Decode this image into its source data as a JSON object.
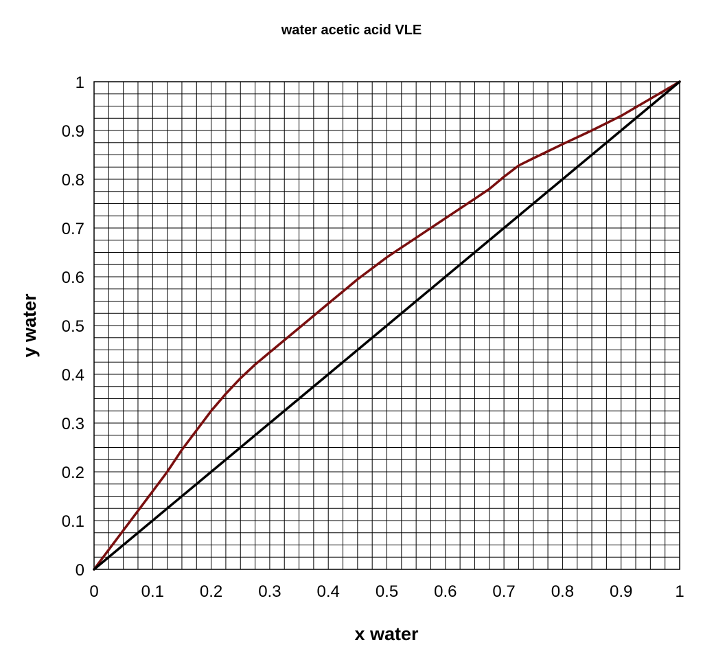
{
  "chart_data": {
    "type": "line",
    "title": "water acetic acid VLE",
    "xlabel": "x water",
    "ylabel": "y water",
    "xlim": [
      0,
      1
    ],
    "ylim": [
      0,
      1
    ],
    "x_ticks": [
      "0",
      "0.1",
      "0.2",
      "0.3",
      "0.4",
      "0.5",
      "0.6",
      "0.7",
      "0.8",
      "0.9",
      "1"
    ],
    "y_ticks": [
      "0",
      "0.1",
      "0.2",
      "0.3",
      "0.4",
      "0.5",
      "0.6",
      "0.7",
      "0.8",
      "0.9",
      "1"
    ],
    "grid": true,
    "grid_step": 0.025,
    "series": [
      {
        "color": "#7a0f0f",
        "x": [
          0,
          0.025,
          0.05,
          0.075,
          0.1,
          0.125,
          0.15,
          0.175,
          0.2,
          0.225,
          0.25,
          0.275,
          0.3,
          0.35,
          0.4,
          0.45,
          0.5,
          0.55,
          0.6,
          0.65,
          0.675,
          0.7,
          0.725,
          0.75,
          0.8,
          0.85,
          0.9,
          0.95,
          1
        ],
        "y": [
          0,
          0.04,
          0.08,
          0.12,
          0.16,
          0.2,
          0.245,
          0.285,
          0.325,
          0.36,
          0.392,
          0.42,
          0.445,
          0.495,
          0.545,
          0.595,
          0.64,
          0.68,
          0.72,
          0.76,
          0.78,
          0.805,
          0.828,
          0.843,
          0.872,
          0.9,
          0.93,
          0.965,
          1
        ]
      },
      {
        "color": "#000000",
        "x": [
          0,
          0.1,
          0.2,
          0.3,
          0.4,
          0.5,
          0.6,
          0.7,
          0.8,
          0.9,
          1
        ],
        "y": [
          0,
          0.1,
          0.2,
          0.3,
          0.4,
          0.5,
          0.6,
          0.7,
          0.8,
          0.9,
          1
        ]
      }
    ]
  }
}
